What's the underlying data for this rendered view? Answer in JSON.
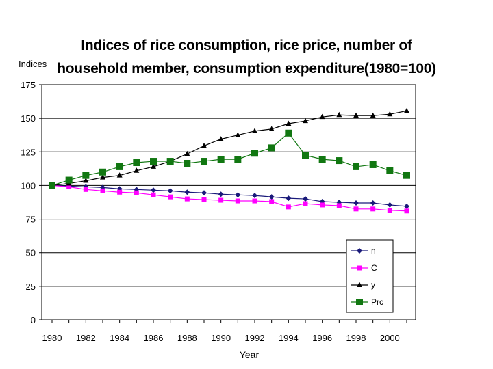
{
  "chart_data": {
    "type": "line",
    "title_line1": "Indices of rice consumption, rice price, number of",
    "title_line2": "household member, consumption expenditure(1980=100)",
    "ylabel": "Indices",
    "xlabel": "Year",
    "ylim": [
      0,
      175
    ],
    "yticks": [
      0,
      25,
      50,
      75,
      100,
      125,
      150,
      175
    ],
    "x": [
      1980,
      1981,
      1982,
      1983,
      1984,
      1985,
      1986,
      1987,
      1988,
      1989,
      1990,
      1991,
      1992,
      1993,
      1994,
      1995,
      1996,
      1997,
      1998,
      1999,
      2000,
      2001
    ],
    "xticks": [
      1980,
      1982,
      1984,
      1986,
      1988,
      1990,
      1992,
      1994,
      1996,
      1998,
      2000
    ],
    "xlim": [
      1980,
      2001
    ],
    "series": [
      {
        "name": "n",
        "color": "#1a1a7a",
        "marker": "diamond",
        "values": [
          100,
          99.5,
          99,
          98.5,
          97.5,
          97,
          96.5,
          96,
          95,
          94.5,
          93.5,
          93,
          92.5,
          91.5,
          90.5,
          90,
          88,
          87.5,
          87,
          87,
          85.5,
          84.5
        ]
      },
      {
        "name": "C",
        "color": "#ff00ff",
        "marker": "square",
        "values": [
          100,
          99,
          97,
          96,
          95,
          94.5,
          93,
          91.5,
          90,
          89.5,
          89,
          88.5,
          88.5,
          88,
          84,
          86.5,
          85.5,
          85,
          82.5,
          82.5,
          81.5,
          81
        ]
      },
      {
        "name": "y",
        "color": "#000000",
        "marker": "triangle",
        "values": [
          100,
          101.5,
          103.5,
          106,
          107.5,
          111,
          114,
          118,
          123.5,
          129.5,
          134.5,
          137.5,
          140.5,
          142,
          146,
          148,
          151,
          152.5,
          152,
          152,
          153,
          155.5
        ]
      },
      {
        "name": "Prc",
        "color": "#117711",
        "marker": "bigsquare",
        "values": [
          100,
          104,
          107.5,
          110,
          114,
          117,
          118,
          118,
          116.5,
          118,
          119.5,
          119.5,
          124,
          128,
          139,
          122.5,
          119.5,
          118.5,
          114,
          115.5,
          111,
          107.5
        ]
      }
    ],
    "legend": "bottom-right"
  }
}
